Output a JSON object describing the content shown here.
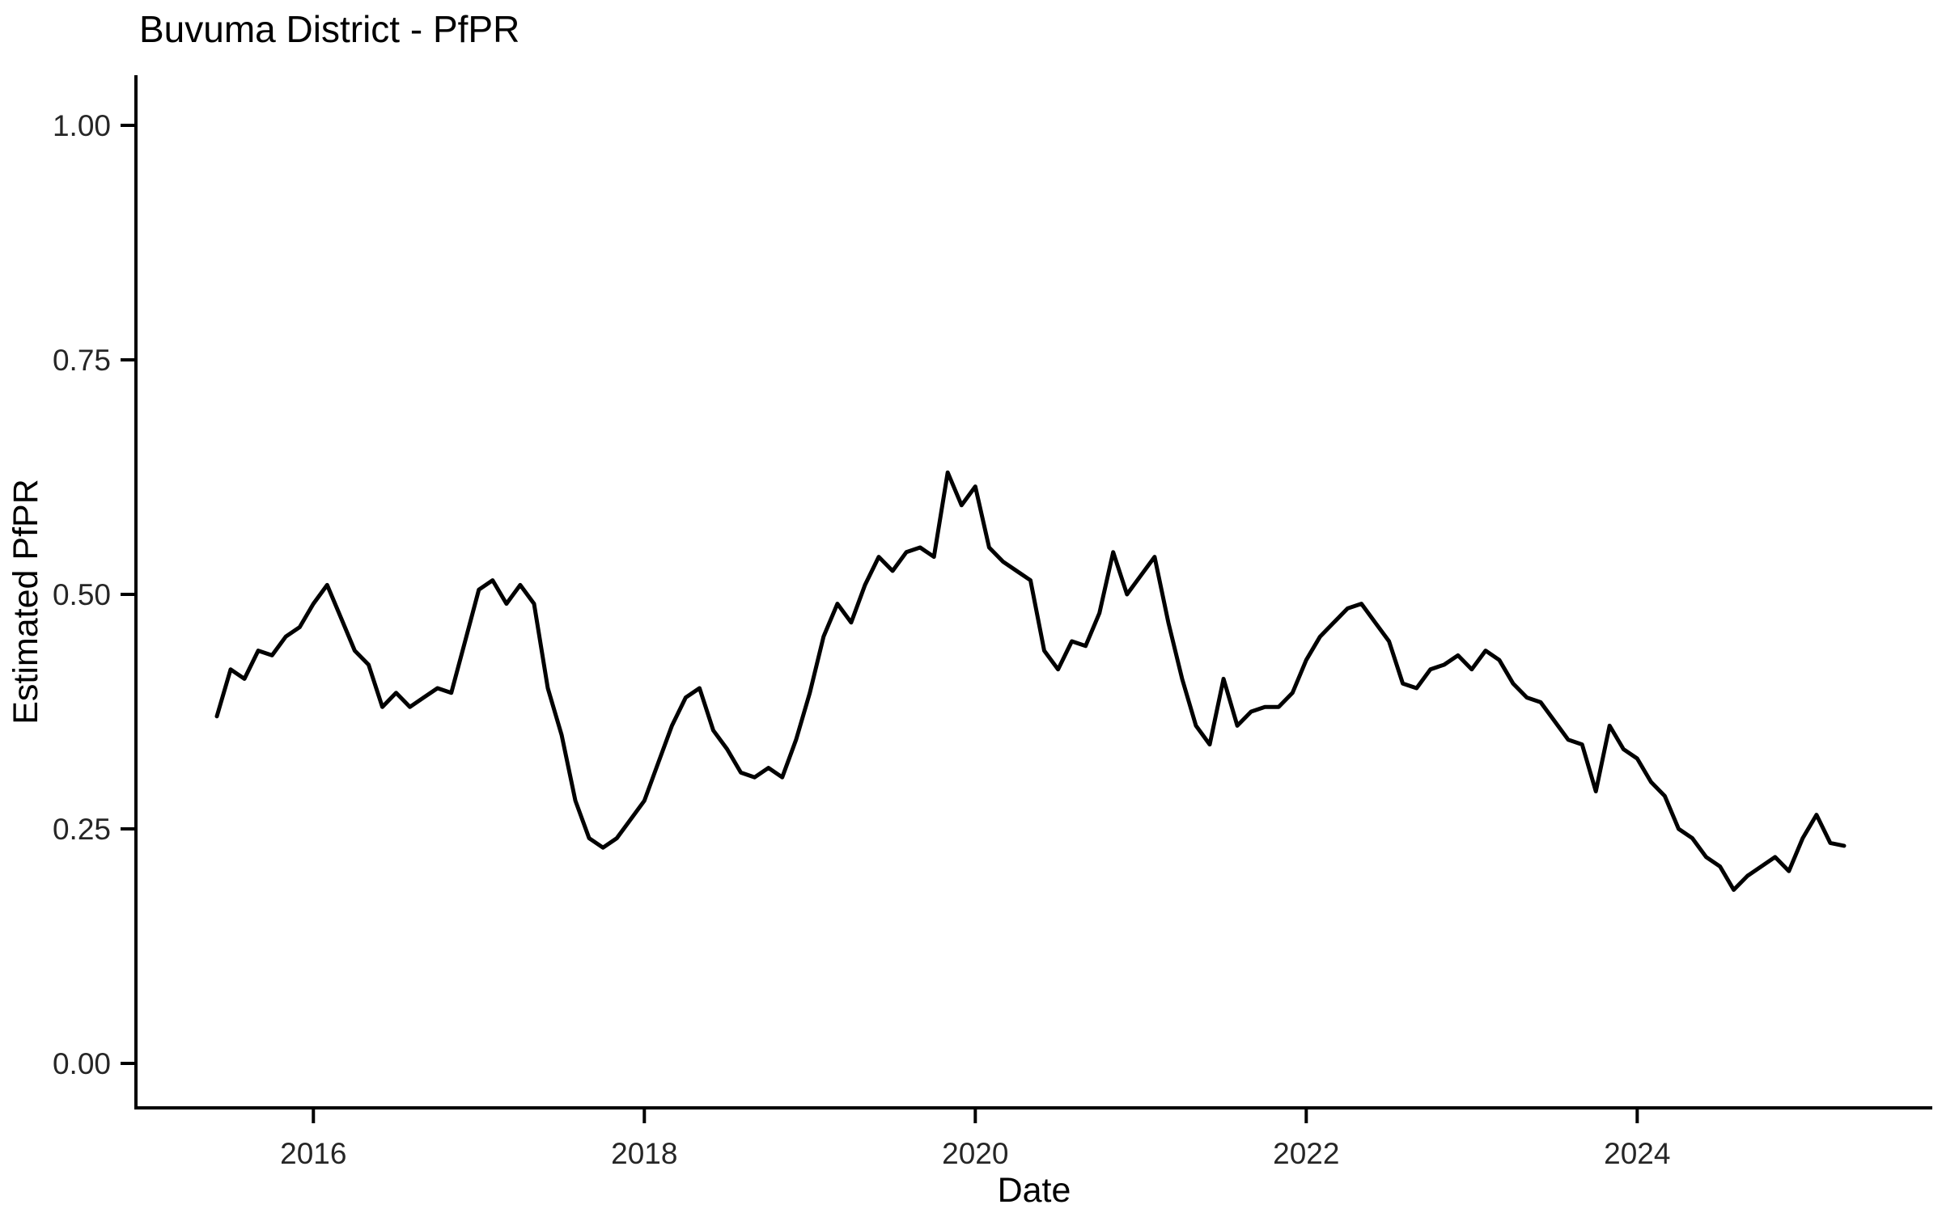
{
  "chart_data": {
    "type": "line",
    "title": "Buvuma District - PfPR",
    "xlabel": "Date",
    "ylabel": "Estimated PfPR",
    "legend": "none",
    "grid": "off",
    "line_color": "#000000",
    "background_color": "#ffffff",
    "ylim": [
      0.0,
      1.0
    ],
    "yticks": [
      {
        "value": 0.0,
        "label": "0.00"
      },
      {
        "value": 0.25,
        "label": "0.25"
      },
      {
        "value": 0.5,
        "label": "0.50"
      },
      {
        "value": 0.75,
        "label": "0.75"
      },
      {
        "value": 1.0,
        "label": "1.00"
      }
    ],
    "xticks": [
      {
        "year": 2016,
        "label": "2016"
      },
      {
        "year": 2018,
        "label": "2018"
      },
      {
        "year": 2020,
        "label": "2020"
      },
      {
        "year": 2022,
        "label": "2022"
      },
      {
        "year": 2024,
        "label": "2024"
      }
    ],
    "x": [
      "2015-06",
      "2015-07",
      "2015-08",
      "2015-09",
      "2015-10",
      "2015-11",
      "2015-12",
      "2016-01",
      "2016-02",
      "2016-03",
      "2016-04",
      "2016-05",
      "2016-06",
      "2016-07",
      "2016-08",
      "2016-09",
      "2016-10",
      "2016-11",
      "2016-12",
      "2017-01",
      "2017-02",
      "2017-03",
      "2017-04",
      "2017-05",
      "2017-06",
      "2017-07",
      "2017-08",
      "2017-09",
      "2017-10",
      "2017-11",
      "2017-12",
      "2018-01",
      "2018-02",
      "2018-03",
      "2018-04",
      "2018-05",
      "2018-06",
      "2018-07",
      "2018-08",
      "2018-09",
      "2018-10",
      "2018-11",
      "2018-12",
      "2019-01",
      "2019-02",
      "2019-03",
      "2019-04",
      "2019-05",
      "2019-06",
      "2019-07",
      "2019-08",
      "2019-09",
      "2019-10",
      "2019-11",
      "2019-12",
      "2020-01",
      "2020-02",
      "2020-03",
      "2020-04",
      "2020-05",
      "2020-06",
      "2020-07",
      "2020-08",
      "2020-09",
      "2020-10",
      "2020-11",
      "2020-12",
      "2021-01",
      "2021-02",
      "2021-03",
      "2021-04",
      "2021-05",
      "2021-06",
      "2021-07",
      "2021-08",
      "2021-09",
      "2021-10",
      "2021-11",
      "2021-12",
      "2022-01",
      "2022-02",
      "2022-03",
      "2022-04",
      "2022-05",
      "2022-06",
      "2022-07",
      "2022-08",
      "2022-09",
      "2022-10",
      "2022-11",
      "2022-12",
      "2023-01",
      "2023-02",
      "2023-03",
      "2023-04",
      "2023-05",
      "2023-06",
      "2023-07",
      "2023-08",
      "2023-09",
      "2023-10",
      "2023-11",
      "2023-12",
      "2024-01",
      "2024-02",
      "2024-03",
      "2024-04",
      "2024-05",
      "2024-06",
      "2024-07",
      "2024-08",
      "2024-09",
      "2024-10",
      "2024-11",
      "2024-12",
      "2025-01",
      "2025-02",
      "2025-03",
      "2025-04"
    ],
    "y": [
      0.37,
      0.42,
      0.41,
      0.44,
      0.435,
      0.455,
      0.465,
      0.49,
      0.51,
      0.475,
      0.44,
      0.425,
      0.38,
      0.395,
      0.38,
      0.39,
      0.4,
      0.395,
      0.45,
      0.505,
      0.515,
      0.49,
      0.51,
      0.49,
      0.4,
      0.35,
      0.28,
      0.24,
      0.23,
      0.24,
      0.26,
      0.28,
      0.32,
      0.36,
      0.39,
      0.4,
      0.355,
      0.335,
      0.31,
      0.305,
      0.315,
      0.305,
      0.345,
      0.395,
      0.455,
      0.49,
      0.47,
      0.51,
      0.54,
      0.525,
      0.545,
      0.55,
      0.54,
      0.63,
      0.595,
      0.615,
      0.55,
      0.535,
      0.525,
      0.515,
      0.44,
      0.42,
      0.45,
      0.445,
      0.48,
      0.545,
      0.5,
      0.52,
      0.54,
      0.47,
      0.41,
      0.36,
      0.34,
      0.41,
      0.36,
      0.375,
      0.38,
      0.38,
      0.395,
      0.43,
      0.455,
      0.47,
      0.485,
      0.49,
      0.47,
      0.45,
      0.405,
      0.4,
      0.42,
      0.425,
      0.435,
      0.42,
      0.44,
      0.43,
      0.405,
      0.39,
      0.385,
      0.365,
      0.345,
      0.34,
      0.29,
      0.36,
      0.335,
      0.325,
      0.3,
      0.285,
      0.25,
      0.24,
      0.22,
      0.21,
      0.185,
      0.2,
      0.21,
      0.22,
      0.205,
      0.24,
      0.265,
      0.235,
      0.232
    ]
  }
}
